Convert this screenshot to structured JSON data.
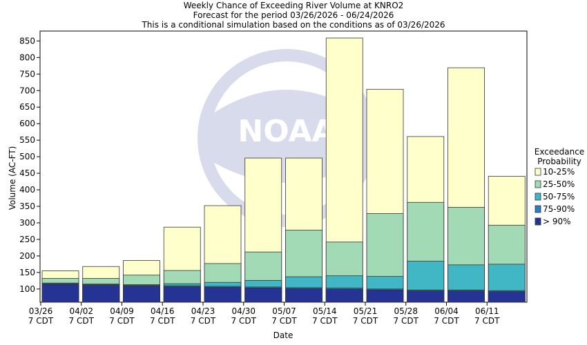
{
  "chart_data": {
    "type": "bar",
    "title_lines": [
      "Weekly Chance of Exceeding River Volume at KNRO2",
      "Forecast for the period 03/26/2026 - 06/24/2026",
      "This is a conditional simulation based on the conditions as of 03/26/2026"
    ],
    "xlabel": "Date",
    "ylabel": "Volume (AC-FT)",
    "ylim": [
      60,
      880
    ],
    "yticks": [
      100,
      150,
      200,
      250,
      300,
      350,
      400,
      450,
      500,
      550,
      600,
      650,
      700,
      750,
      800,
      850
    ],
    "xticks": [
      {
        "line1": "03/26",
        "line2": "7 CDT"
      },
      {
        "line1": "04/02",
        "line2": "7 CDT"
      },
      {
        "line1": "04/09",
        "line2": "7 CDT"
      },
      {
        "line1": "04/16",
        "line2": "7 CDT"
      },
      {
        "line1": "04/23",
        "line2": "7 CDT"
      },
      {
        "line1": "04/30",
        "line2": "7 CDT"
      },
      {
        "line1": "05/07",
        "line2": "7 CDT"
      },
      {
        "line1": "05/14",
        "line2": "7 CDT"
      },
      {
        "line1": "05/21",
        "line2": "7 CDT"
      },
      {
        "line1": "05/28",
        "line2": "7 CDT"
      },
      {
        "line1": "06/04",
        "line2": "7 CDT"
      },
      {
        "line1": "06/11",
        "line2": "7 CDT"
      }
    ],
    "legend": {
      "title_line1": "Exceedance",
      "title_line2": "Probability",
      "position": "right"
    },
    "series": [
      {
        "name": "10-25%",
        "color": "#ffffcc",
        "values": [
          155,
          168,
          186,
          287,
          352,
          496,
          496,
          859,
          704,
          561,
          769,
          441
        ]
      },
      {
        "name": "25-50%",
        "color": "#a1dab4",
        "values": [
          132,
          132,
          142,
          156,
          177,
          212,
          278,
          242,
          328,
          362,
          347,
          293
        ]
      },
      {
        "name": "50-75%",
        "color": "#41b6c4",
        "values": [
          118,
          115,
          113,
          116,
          120,
          126,
          137,
          140,
          138,
          184,
          173,
          175
        ]
      },
      {
        "name": "75-90%",
        "color": "#2c7fb8",
        "values": [
          116,
          113,
          111,
          110,
          108,
          106,
          104,
          103,
          100,
          97,
          97,
          95
        ]
      },
      {
        "name": "> 90%",
        "color": "#253494",
        "values": [
          114,
          111,
          109,
          107,
          105,
          103,
          101,
          99,
          97,
          94,
          94,
          92
        ]
      }
    ]
  }
}
